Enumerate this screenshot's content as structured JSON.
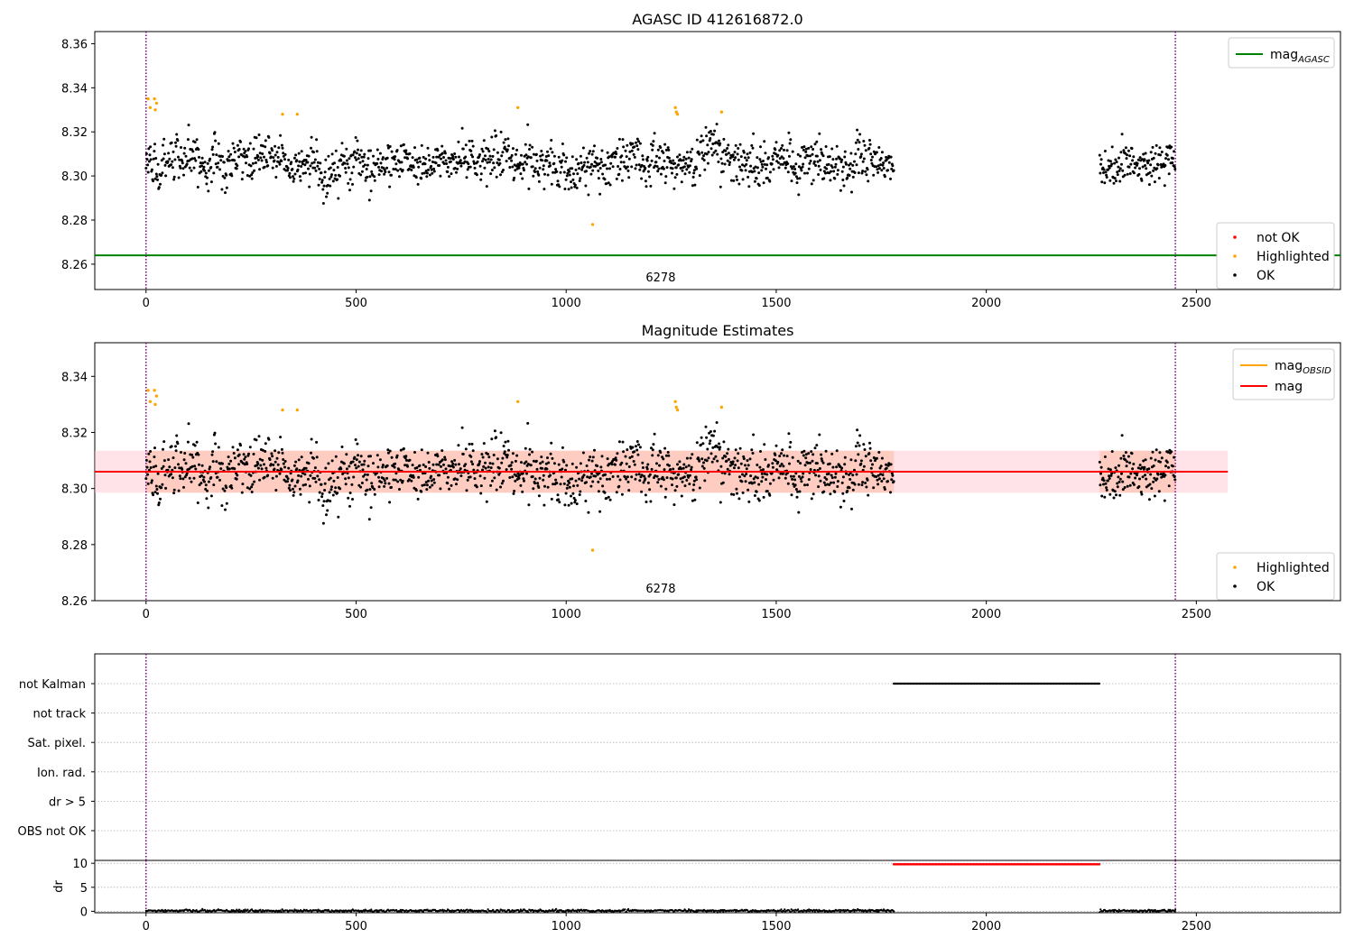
{
  "colors": {
    "ok": "#000000",
    "highlighted": "#ffa500",
    "not_ok": "#ff0000",
    "mag_agasc": "#008000",
    "mag_obsid": "#ffa500",
    "mag": "#ff0000",
    "boundary": "#800080",
    "band_outer": "#ffc0cb",
    "band_inner": "#ffa07a"
  },
  "chart_data": [
    {
      "id": "top",
      "type": "scatter",
      "title": "AGASC ID 412616872.0",
      "xlim": [
        -122,
        2843
      ],
      "ylim": [
        8.2485,
        8.3655
      ],
      "xticks": [
        0,
        500,
        1000,
        1500,
        2000,
        2500
      ],
      "yticks": [
        8.26,
        8.28,
        8.3,
        8.32,
        8.34,
        8.36
      ],
      "boundaries": [
        0,
        2450
      ],
      "obsid_label": {
        "text": "6278",
        "x": 1225
      },
      "hline": {
        "name": "mag_AGASC",
        "y": 8.264
      },
      "legend_lines": [
        {
          "label": "mag",
          "sub": "AGASC",
          "color": "mag_agasc"
        }
      ],
      "legend_points": [
        {
          "label": "not OK",
          "color": "not_ok"
        },
        {
          "label": "Highlighted",
          "color": "highlighted"
        },
        {
          "label": "OK",
          "color": "ok"
        }
      ],
      "segments": [
        {
          "x": [
            0,
            1780
          ],
          "mean": 8.306,
          "sd": 0.0075
        },
        {
          "x": [
            2270,
            2450
          ],
          "mean": 8.305,
          "sd": 0.0075
        }
      ],
      "highlighted_points": [
        [
          5,
          8.335
        ],
        [
          10,
          8.331
        ],
        [
          20,
          8.335
        ],
        [
          22,
          8.33
        ],
        [
          25,
          8.333
        ],
        [
          325,
          8.328
        ],
        [
          360,
          8.328
        ],
        [
          885,
          8.331
        ],
        [
          1063,
          8.278
        ],
        [
          1260,
          8.331
        ],
        [
          1262,
          8.329
        ],
        [
          1265,
          8.328
        ],
        [
          1370,
          8.329
        ]
      ]
    },
    {
      "id": "mid",
      "type": "scatter",
      "title": "Magnitude Estimates",
      "xlim": [
        -122,
        2843
      ],
      "ylim": [
        8.26,
        8.352
      ],
      "xticks": [
        0,
        500,
        1000,
        1500,
        2000,
        2500
      ],
      "yticks": [
        8.26,
        8.28,
        8.3,
        8.32,
        8.34
      ],
      "boundaries": [
        0,
        2450
      ],
      "obsid_label": {
        "text": "6278",
        "x": 1225
      },
      "mag_line": {
        "x": [
          -122,
          2575
        ],
        "y": 8.306
      },
      "band_outer": {
        "x": [
          -122,
          2575
        ],
        "y": [
          8.2985,
          8.3135
        ]
      },
      "band_inner": {
        "x": [
          0,
          1780
        ],
        "y": [
          8.2985,
          8.3135
        ]
      },
      "band_inner_2": {
        "x": [
          2270,
          2450
        ],
        "y": [
          8.2985,
          8.3135
        ]
      },
      "legend_lines": [
        {
          "label": "mag",
          "sub": "OBSID",
          "color": "mag_obsid"
        },
        {
          "label": "mag",
          "sub": "",
          "color": "mag"
        }
      ],
      "legend_points": [
        {
          "label": "Highlighted",
          "color": "highlighted"
        },
        {
          "label": "OK",
          "color": "ok"
        }
      ],
      "segments": [
        {
          "x": [
            0,
            1780
          ],
          "mean": 8.306,
          "sd": 0.0075
        },
        {
          "x": [
            2270,
            2450
          ],
          "mean": 8.305,
          "sd": 0.0075
        }
      ],
      "highlighted_points": [
        [
          5,
          8.335
        ],
        [
          10,
          8.331
        ],
        [
          20,
          8.335
        ],
        [
          22,
          8.33
        ],
        [
          25,
          8.333
        ],
        [
          325,
          8.328
        ],
        [
          360,
          8.328
        ],
        [
          885,
          8.331
        ],
        [
          1063,
          8.278
        ],
        [
          1260,
          8.331
        ],
        [
          1262,
          8.329
        ],
        [
          1265,
          8.328
        ],
        [
          1370,
          8.329
        ]
      ]
    },
    {
      "id": "flags",
      "type": "scatter",
      "xlim": [
        -122,
        2843
      ],
      "boundaries": [
        0,
        2450
      ],
      "categories": [
        "not Kalman",
        "not track",
        "Sat. pixel.",
        "Ion. rad.",
        "dr > 5",
        "OBS not OK"
      ],
      "flag_ranges": [
        {
          "category": "not Kalman",
          "x": [
            1780,
            2270
          ]
        }
      ]
    },
    {
      "id": "dr",
      "type": "scatter",
      "xlim": [
        -122,
        2843
      ],
      "ylim": [
        -0.3,
        10.6
      ],
      "ylabel": "dr",
      "xticks": [
        0,
        500,
        1000,
        1500,
        2000,
        2500
      ],
      "yticks": [
        0,
        5,
        10
      ],
      "boundaries": [
        0,
        2450
      ],
      "bad_range": {
        "x": [
          1780,
          2270
        ],
        "y": 9.8
      },
      "segments": [
        {
          "x": [
            0,
            1780
          ]
        },
        {
          "x": [
            2270,
            2450
          ]
        }
      ]
    }
  ]
}
